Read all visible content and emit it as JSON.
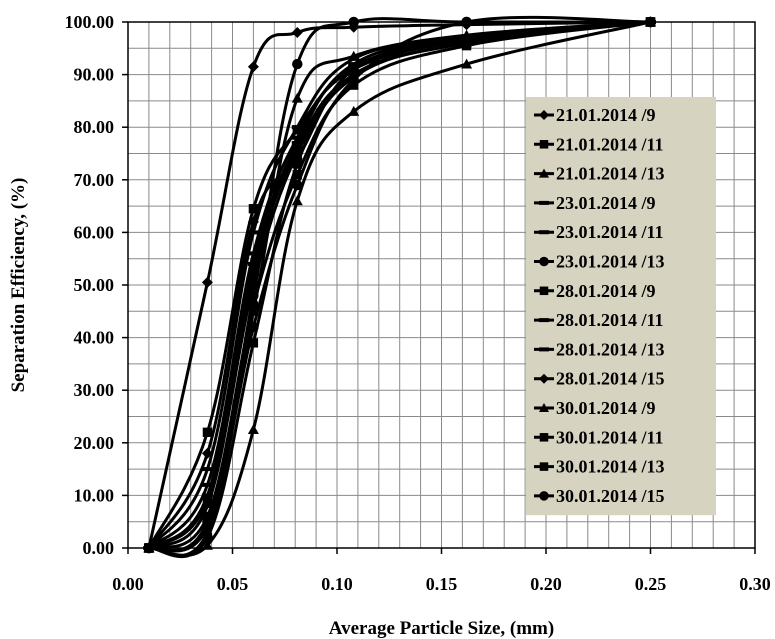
{
  "chart_data": {
    "type": "line",
    "title": "",
    "xlabel": "Average Particle Size, (mm)",
    "ylabel": "Separation Efficiency,  (%)",
    "xlim": [
      0,
      0.3
    ],
    "ylim": [
      0,
      100
    ],
    "x_ticks": [
      "0.00",
      "0.05",
      "0.10",
      "0.15",
      "0.20",
      "0.25",
      "0.30"
    ],
    "y_ticks": [
      "0.00",
      "10.00",
      "20.00",
      "30.00",
      "40.00",
      "50.00",
      "60.00",
      "70.00",
      "80.00",
      "90.00",
      "100.00"
    ],
    "grid": true,
    "legend_position": "right",
    "legend_background": "#d6d3c0",
    "line_color": "#000000",
    "series": [
      {
        "name": "21.01.2014 /9",
        "marker": "diamond",
        "x": [
          0.01,
          0.038,
          0.06,
          0.081,
          0.108,
          0.162,
          0.25
        ],
        "y": [
          0,
          50.5,
          91.5,
          98.0,
          99.0,
          99.5,
          100
        ]
      },
      {
        "name": "21.01.2014 /11",
        "marker": "square",
        "x": [
          0.01,
          0.038,
          0.06,
          0.081,
          0.108,
          0.162,
          0.25
        ],
        "y": [
          0,
          22.0,
          64.5,
          79.5,
          91.0,
          96.5,
          100
        ]
      },
      {
        "name": "21.01.2014 /13",
        "marker": "triangle",
        "x": [
          0.01,
          0.038,
          0.06,
          0.081,
          0.108,
          0.162,
          0.25
        ],
        "y": [
          0,
          3.0,
          45.0,
          85.5,
          93.5,
          97.5,
          100
        ]
      },
      {
        "name": "23.01.2014 /9",
        "marker": "dash",
        "x": [
          0.01,
          0.038,
          0.06,
          0.081,
          0.108,
          0.162,
          0.25
        ],
        "y": [
          0,
          8.0,
          52.0,
          76.0,
          90.0,
          96.0,
          100
        ]
      },
      {
        "name": "23.01.2014 /11",
        "marker": "dash",
        "x": [
          0.01,
          0.038,
          0.06,
          0.081,
          0.108,
          0.162,
          0.25
        ],
        "y": [
          0,
          12.0,
          56.0,
          78.0,
          91.5,
          96.5,
          100
        ]
      },
      {
        "name": "23.01.2014 /13",
        "marker": "circle",
        "x": [
          0.01,
          0.038,
          0.06,
          0.081,
          0.108,
          0.162,
          0.25
        ],
        "y": [
          0,
          5.0,
          48.0,
          92.0,
          100.0,
          100.0,
          100
        ]
      },
      {
        "name": "28.01.2014 /9",
        "marker": "square",
        "x": [
          0.01,
          0.038,
          0.06,
          0.081,
          0.108,
          0.162,
          0.25
        ],
        "y": [
          0,
          2.0,
          39.0,
          73.0,
          89.5,
          96.0,
          100
        ]
      },
      {
        "name": "28.01.2014 /11",
        "marker": "dash",
        "x": [
          0.01,
          0.038,
          0.06,
          0.081,
          0.108,
          0.162,
          0.25
        ],
        "y": [
          0,
          15.0,
          60.0,
          80.0,
          93.0,
          97.0,
          100
        ]
      },
      {
        "name": "28.01.2014 /13",
        "marker": "dash",
        "x": [
          0.01,
          0.038,
          0.06,
          0.081,
          0.108,
          0.162,
          0.25
        ],
        "y": [
          0,
          10.0,
          54.0,
          77.0,
          92.0,
          97.0,
          100
        ]
      },
      {
        "name": "28.01.2014 /15",
        "marker": "diamond",
        "x": [
          0.01,
          0.038,
          0.06,
          0.081,
          0.108,
          0.162,
          0.25
        ],
        "y": [
          0,
          18.0,
          62.0,
          74.0,
          91.0,
          97.0,
          100
        ]
      },
      {
        "name": "30.01.2014 /9",
        "marker": "triangle",
        "x": [
          0.01,
          0.038,
          0.06,
          0.081,
          0.108,
          0.162,
          0.25
        ],
        "y": [
          0,
          0.5,
          22.5,
          66.0,
          83.0,
          92.0,
          100
        ]
      },
      {
        "name": "30.01.2014 /11",
        "marker": "square",
        "x": [
          0.01,
          0.038,
          0.06,
          0.081,
          0.108,
          0.162,
          0.25
        ],
        "y": [
          0,
          6.0,
          46.0,
          71.0,
          88.0,
          95.5,
          100
        ]
      },
      {
        "name": "30.01.2014 /13",
        "marker": "square",
        "x": [
          0.01,
          0.038,
          0.06,
          0.081,
          0.108,
          0.162,
          0.25
        ],
        "y": [
          0,
          9.0,
          50.0,
          75.0,
          90.0,
          96.0,
          100
        ]
      },
      {
        "name": "30.01.2014 /15",
        "marker": "circle",
        "x": [
          0.01,
          0.038,
          0.06,
          0.081,
          0.108,
          0.162,
          0.25
        ],
        "y": [
          0,
          4.0,
          42.0,
          69.0,
          89.0,
          100.0,
          100
        ]
      }
    ]
  }
}
